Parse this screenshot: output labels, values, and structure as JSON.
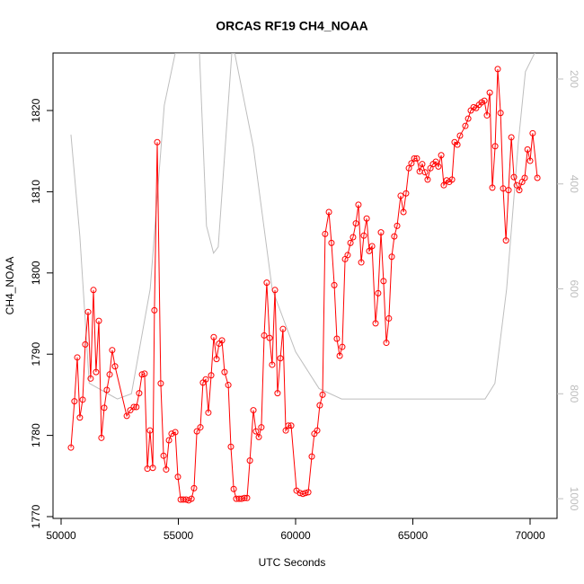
{
  "chart_data": {
    "type": "line",
    "title": "ORCAS RF19 CH4_NOAA",
    "x_label": "UTC Seconds",
    "y_label": "CH4_NOAA",
    "xlim": [
      49655,
      71149
    ],
    "xticks": [
      50000,
      55000,
      60000,
      65000,
      70000
    ],
    "ylim": [
      1769.78,
      1827.08
    ],
    "yticks": [
      1770,
      1780,
      1790,
      1800,
      1810,
      1820
    ],
    "y2lim": [
      1037.6,
      150.4
    ],
    "y2ticks": [
      200,
      400,
      600,
      800,
      1000
    ],
    "series": [
      {
        "color": "#ff0000",
        "markers": true,
        "x": [
          50420,
          50570,
          50690,
          50800,
          50920,
          51030,
          51150,
          51260,
          51380,
          51490,
          51610,
          51720,
          51840,
          51950,
          52070,
          52180,
          52300,
          52800,
          52950,
          53100,
          53210,
          53330,
          53450,
          53560,
          53680,
          53790,
          53910,
          53980,
          54100,
          54250,
          54370,
          54480,
          54600,
          54710,
          54870,
          54980,
          55100,
          55210,
          55330,
          55440,
          55560,
          55670,
          55790,
          55940,
          56050,
          56170,
          56280,
          56400,
          56510,
          56630,
          56740,
          56860,
          56970,
          57130,
          57240,
          57360,
          57470,
          57590,
          57700,
          57820,
          57930,
          58050,
          58200,
          58310,
          58430,
          58540,
          58660,
          58770,
          58890,
          59000,
          59120,
          59230,
          59350,
          59460,
          59580,
          59690,
          59810,
          60040,
          60190,
          60310,
          60420,
          60540,
          60690,
          60800,
          60920,
          61030,
          61150,
          61260,
          61420,
          61530,
          61650,
          61760,
          61880,
          61990,
          62110,
          62220,
          62340,
          62450,
          62570,
          62680,
          62800,
          62910,
          63030,
          63140,
          63260,
          63410,
          63520,
          63640,
          63750,
          63870,
          63980,
          64100,
          64210,
          64330,
          64480,
          64600,
          64710,
          64830,
          64940,
          65060,
          65170,
          65290,
          65400,
          65520,
          65630,
          65750,
          65860,
          65980,
          66090,
          66210,
          66320,
          66440,
          66550,
          66670,
          66780,
          66900,
          67010,
          67240,
          67360,
          67470,
          67590,
          67700,
          67820,
          67930,
          68050,
          68160,
          68280,
          68390,
          68510,
          68620,
          68740,
          68850,
          68970,
          69080,
          69200,
          69310,
          69430,
          69540,
          69660,
          69770,
          69890,
          70000,
          70110,
          70310
        ],
        "values": [
          1778.5,
          1784.2,
          1789.6,
          1782.2,
          1784.4,
          1791.2,
          1795.2,
          1787.0,
          1797.9,
          1787.8,
          1794.1,
          1779.7,
          1783.4,
          1785.6,
          1787.5,
          1790.5,
          1788.5,
          1782.4,
          1783.1,
          1783.5,
          1783.5,
          1785.2,
          1787.5,
          1787.6,
          1775.9,
          1780.6,
          1776.0,
          1795.4,
          1816.1,
          1786.4,
          1777.5,
          1775.8,
          1779.4,
          1780.2,
          1780.4,
          1774.9,
          1772.1,
          1772.1,
          1772.1,
          1772.0,
          1772.2,
          1773.5,
          1780.5,
          1781.0,
          1786.5,
          1786.9,
          1782.8,
          1787.4,
          1792.1,
          1789.4,
          1791.3,
          1791.7,
          1787.8,
          1786.2,
          1778.6,
          1773.4,
          1772.2,
          1772.2,
          1772.2,
          1772.3,
          1772.3,
          1776.9,
          1783.1,
          1780.5,
          1779.8,
          1781.0,
          1792.3,
          1798.8,
          1792.0,
          1788.7,
          1797.9,
          1785.2,
          1789.5,
          1793.1,
          1780.6,
          1781.2,
          1781.2,
          1773.2,
          1772.9,
          1772.8,
          1772.9,
          1773.0,
          1777.4,
          1780.2,
          1780.6,
          1783.7,
          1785.0,
          1804.8,
          1807.5,
          1803.7,
          1798.5,
          1791.9,
          1789.8,
          1790.9,
          1801.7,
          1802.2,
          1803.7,
          1804.4,
          1806.1,
          1808.4,
          1801.3,
          1804.6,
          1806.7,
          1802.7,
          1803.3,
          1793.8,
          1797.5,
          1805.0,
          1799.0,
          1791.4,
          1794.4,
          1802.0,
          1804.5,
          1805.8,
          1809.5,
          1807.5,
          1809.8,
          1812.9,
          1813.5,
          1814.1,
          1814.1,
          1812.5,
          1813.4,
          1812.4,
          1811.5,
          1812.9,
          1813.4,
          1813.7,
          1813.1,
          1814.5,
          1810.8,
          1811.4,
          1811.2,
          1811.5,
          1816.1,
          1815.8,
          1816.9,
          1818.1,
          1819.0,
          1820.0,
          1820.4,
          1820.3,
          1820.7,
          1821.0,
          1821.2,
          1819.4,
          1822.2,
          1810.5,
          1815.6,
          1825.1,
          1819.7,
          1810.4,
          1804.0,
          1810.2,
          1816.7,
          1811.8,
          1810.8,
          1810.2,
          1811.2,
          1811.7,
          1815.2,
          1813.8,
          1817.2,
          1811.7
        ]
      },
      {
        "color": "#bebebe",
        "markers": false,
        "axis": "y2",
        "x": [
          50420,
          50800,
          51200,
          52400,
          53000,
          53800,
          54400,
          54870,
          55900,
          56200,
          56500,
          56700,
          57280,
          57400,
          58200,
          59000,
          60000,
          61000,
          61960,
          68080,
          68500,
          69000,
          69500,
          69800,
          70200
        ],
        "values": [
          306,
          500,
          780,
          810,
          800,
          600,
          250,
          150,
          150,
          480,
          532,
          520,
          150,
          150,
          330,
          600,
          720,
          790,
          810,
          810,
          780,
          600,
          320,
          186,
          150
        ]
      }
    ]
  }
}
